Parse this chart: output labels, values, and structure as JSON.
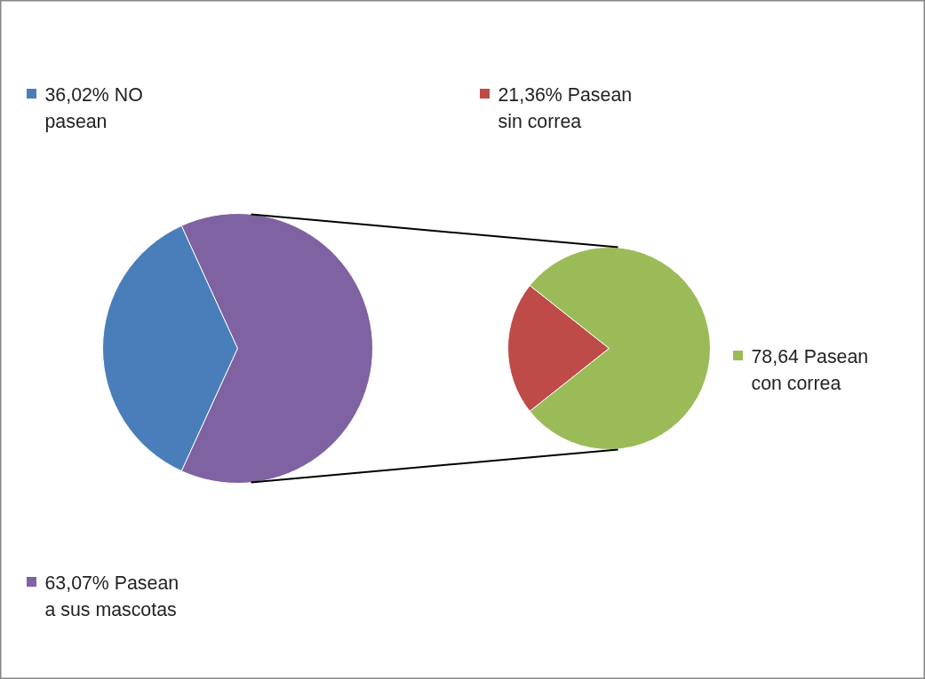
{
  "chart_data": [
    {
      "type": "pie",
      "categories": [
        "NO pasean",
        "Pasean a sus mascotas"
      ],
      "values": [
        36.02,
        63.07
      ],
      "value_labels": [
        "36,02%",
        "63,07% "
      ],
      "colors": [
        "#4a7ebb",
        "#7e62a1"
      ],
      "legend": "left"
    },
    {
      "type": "pie",
      "categories": [
        "Pasean sin correa",
        "Pasean con correa"
      ],
      "values": [
        21.36,
        78.64
      ],
      "value_labels": [
        "21,36%",
        "78,64"
      ],
      "colors": [
        "#be4b48",
        "#9bbb59"
      ],
      "legend": "right"
    }
  ]
}
